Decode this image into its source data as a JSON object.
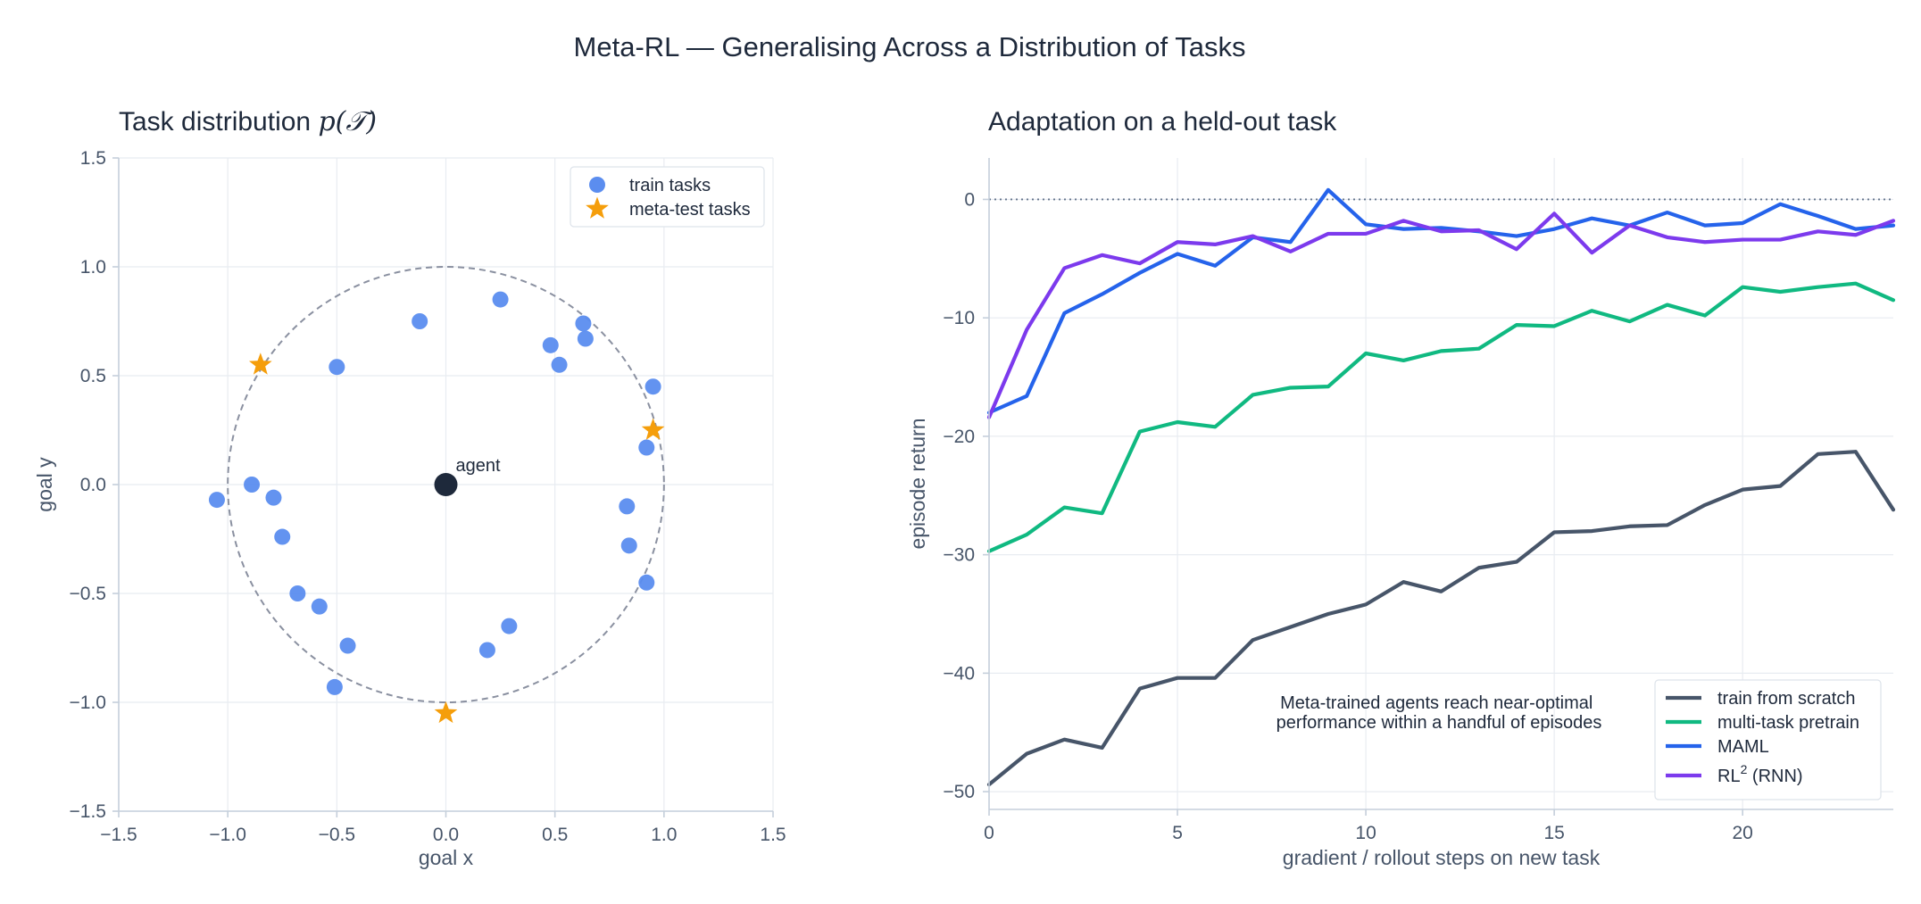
{
  "figure": {
    "title": "Meta-RL — Generalising Across a Distribution of Tasks"
  },
  "chart_data": [
    {
      "type": "scatter",
      "title_prefix": "Task distribution ",
      "title_math": "p(𝒯)",
      "xlabel": "goal x",
      "ylabel": "goal y",
      "xlim": [
        -1.5,
        1.5
      ],
      "ylim": [
        -1.5,
        1.5
      ],
      "xticks": [
        -1.5,
        -1.0,
        -0.5,
        0.0,
        0.5,
        1.0,
        1.5
      ],
      "yticks": [
        -1.5,
        -1.0,
        -0.5,
        0.0,
        0.5,
        1.0,
        1.5
      ],
      "xtick_labels": [
        "−1.5",
        "−1.0",
        "−0.5",
        "0.0",
        "0.5",
        "1.0",
        "1.5"
      ],
      "ytick_labels": [
        "−1.5",
        "−1.0",
        "−0.5",
        "0.0",
        "0.5",
        "1.0",
        "1.5"
      ],
      "grid": true,
      "legend_position": "top-right",
      "unit_circle": {
        "radius": 1.0,
        "style": "dashed",
        "color": "#8a90a0"
      },
      "series": [
        {
          "name": "train tasks",
          "marker": "circle",
          "color": "#5b8def",
          "points": [
            [
              0.25,
              0.85
            ],
            [
              -0.12,
              0.75
            ],
            [
              0.63,
              0.74
            ],
            [
              0.64,
              0.67
            ],
            [
              0.48,
              0.64
            ],
            [
              0.52,
              0.55
            ],
            [
              -0.5,
              0.54
            ],
            [
              0.95,
              0.45
            ],
            [
              0.92,
              0.17
            ],
            [
              -0.89,
              0.0
            ],
            [
              -1.05,
              -0.07
            ],
            [
              -0.79,
              -0.06
            ],
            [
              0.83,
              -0.1
            ],
            [
              -0.75,
              -0.24
            ],
            [
              0.84,
              -0.28
            ],
            [
              0.92,
              -0.45
            ],
            [
              -0.68,
              -0.5
            ],
            [
              -0.58,
              -0.56
            ],
            [
              0.29,
              -0.65
            ],
            [
              -0.45,
              -0.74
            ],
            [
              0.19,
              -0.76
            ],
            [
              -0.51,
              -0.93
            ]
          ]
        },
        {
          "name": "meta-test tasks",
          "marker": "star",
          "color": "#f59e0b",
          "points": [
            [
              -0.85,
              0.55
            ],
            [
              0.95,
              0.25
            ],
            [
              0.0,
              -1.05
            ]
          ]
        }
      ],
      "agent": {
        "x": 0.0,
        "y": 0.0,
        "label": "agent",
        "color": "#1e293b"
      }
    },
    {
      "type": "line",
      "title": "Adaptation on a held-out task",
      "xlabel": "gradient / rollout steps on new task",
      "ylabel": "episode return",
      "xlim": [
        0,
        24
      ],
      "ylim": [
        -51.5,
        3.5
      ],
      "xticks": [
        0,
        5,
        10,
        15,
        20
      ],
      "yticks": [
        0,
        -10,
        -20,
        -30,
        -40,
        -50
      ],
      "xtick_labels": [
        "0",
        "5",
        "10",
        "15",
        "20"
      ],
      "ytick_labels": [
        "0",
        "−10",
        "−20",
        "−30",
        "−40",
        "−50"
      ],
      "grid": true,
      "reference_line": {
        "y": 0,
        "style": "dotted",
        "color": "#64748b"
      },
      "legend_position": "bottom-right",
      "x": [
        0,
        1,
        2,
        3,
        4,
        5,
        6,
        7,
        8,
        9,
        10,
        11,
        12,
        13,
        14,
        15,
        16,
        17,
        18,
        19,
        20,
        21,
        22,
        23,
        24
      ],
      "series": [
        {
          "name": "train from scratch",
          "color": "#475569",
          "values": [
            -49.4,
            -46.8,
            -45.6,
            -46.3,
            -41.3,
            -40.4,
            -40.4,
            -37.2,
            -36.1,
            -35.0,
            -34.2,
            -32.3,
            -33.1,
            -31.1,
            -30.6,
            -28.1,
            -28.0,
            -27.6,
            -27.5,
            -25.8,
            -24.5,
            -24.2,
            -21.5,
            -21.3,
            -26.2
          ]
        },
        {
          "name": "multi-task pretrain",
          "color": "#10b981",
          "values": [
            -29.7,
            -28.3,
            -26.0,
            -26.5,
            -19.6,
            -18.8,
            -19.2,
            -16.5,
            -15.9,
            -15.8,
            -13.0,
            -13.6,
            -12.8,
            -12.6,
            -10.6,
            -10.7,
            -9.4,
            -10.3,
            -8.9,
            -9.8,
            -7.4,
            -7.8,
            -7.4,
            -7.1,
            -8.5
          ]
        },
        {
          "name": "MAML",
          "color": "#2563eb",
          "values": [
            -18.0,
            -16.6,
            -9.6,
            -8.0,
            -6.2,
            -4.6,
            -5.6,
            -3.2,
            -3.6,
            0.8,
            -2.1,
            -2.5,
            -2.4,
            -2.7,
            -3.1,
            -2.5,
            -1.6,
            -2.2,
            -1.1,
            -2.2,
            -2.0,
            -0.4,
            -1.4,
            -2.5,
            -2.2
          ]
        },
        {
          "name": "RL",
          "name_sup": "2",
          "name_suffix": " (RNN)",
          "color": "#7c3aed",
          "values": [
            -18.4,
            -11.0,
            -5.8,
            -4.7,
            -5.4,
            -3.6,
            -3.8,
            -3.1,
            -4.4,
            -2.9,
            -2.9,
            -1.8,
            -2.7,
            -2.6,
            -4.2,
            -1.2,
            -4.5,
            -2.2,
            -3.2,
            -3.6,
            -3.4,
            -3.4,
            -2.7,
            -3.0,
            -1.8
          ]
        }
      ],
      "annotation": {
        "lines": [
          "Meta-trained agents reach near-optimal",
          "performance within a handful of episodes"
        ]
      }
    }
  ]
}
